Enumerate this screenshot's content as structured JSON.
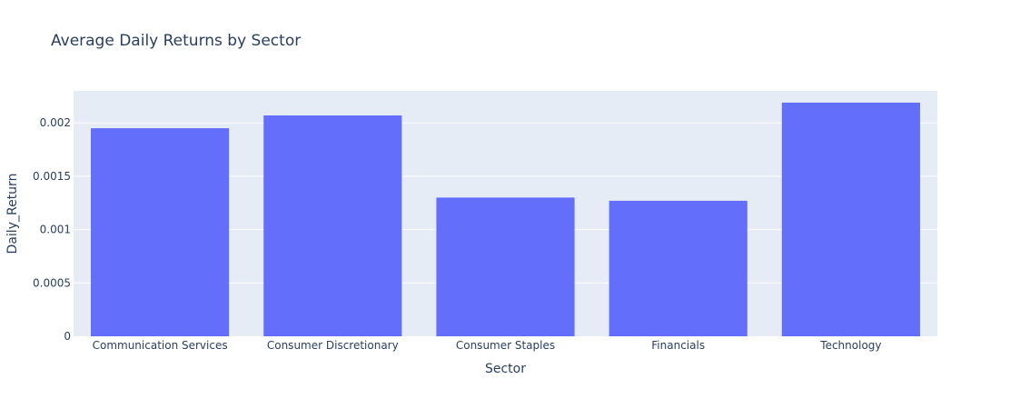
{
  "chart_data": {
    "type": "bar",
    "title": "Average Daily Returns by Sector",
    "xlabel": "Sector",
    "ylabel": "Daily_Return",
    "categories": [
      "Communication Services",
      "Consumer Discretionary",
      "Consumer Staples",
      "Financials",
      "Technology"
    ],
    "values": [
      0.00195,
      0.00207,
      0.0013,
      0.00127,
      0.00219
    ],
    "ylim": [
      0,
      0.0023
    ],
    "yticks": [
      0,
      0.0005,
      0.001,
      0.0015,
      0.002
    ],
    "ytick_labels": [
      "0",
      "0.0005",
      "0.001",
      "0.0015",
      "0.002"
    ],
    "grid": true,
    "colors": {
      "bar": "#636efa",
      "plot_background": "#e5ecf6",
      "gridline": "#ffffff",
      "text": "#2a3f5f"
    }
  }
}
